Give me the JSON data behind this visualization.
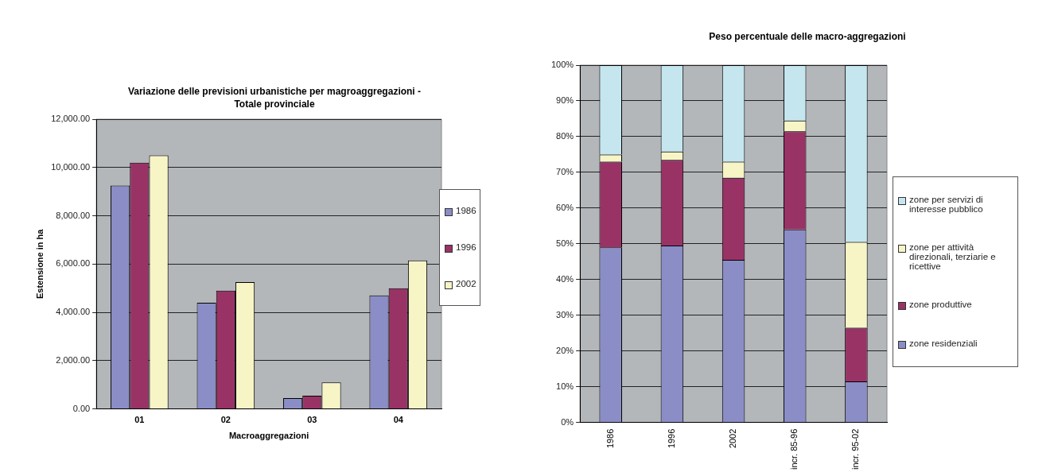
{
  "chart_data": [
    {
      "type": "bar",
      "title": "Variazione delle previsioni urbanistiche per magroaggregazioni - Totale provinciale",
      "xlabel": "Macroaggregazioni",
      "ylabel": "Estensione in ha",
      "categories": [
        "01",
        "02",
        "03",
        "04"
      ],
      "series": [
        {
          "name": "1986",
          "color": "#8b8dc6",
          "values": [
            9250,
            4400,
            450,
            4700
          ]
        },
        {
          "name": "1996",
          "color": "#993366",
          "values": [
            10200,
            4900,
            550,
            5000
          ]
        },
        {
          "name": "2002",
          "color": "#f7f5c6",
          "values": [
            10500,
            5250,
            1100,
            6150
          ]
        }
      ],
      "ylim": [
        0,
        12000
      ],
      "yticks": [
        {
          "value": 0,
          "label": "0.00"
        },
        {
          "value": 2000,
          "label": "2,000.00"
        },
        {
          "value": 4000,
          "label": "4,000.00"
        },
        {
          "value": 6000,
          "label": "6,000.00"
        },
        {
          "value": 8000,
          "label": "8,000.00"
        },
        {
          "value": 10000,
          "label": "10,000.00"
        },
        {
          "value": 12000,
          "label": "12,000.00"
        }
      ],
      "grid": "y",
      "legend": "right"
    },
    {
      "type": "bar",
      "title": "Peso percentuale delle macro-aggregazioni",
      "categories": [
        "1986",
        "1996",
        "2002",
        "incr. 85-96",
        "incr. 95-02"
      ],
      "stacked": true,
      "series": [
        {
          "name": "zone residenziali",
          "color": "#8b8dc6",
          "values": [
            49,
            49.5,
            45.5,
            54,
            11.5
          ]
        },
        {
          "name": "zone produttive",
          "color": "#993366",
          "values": [
            24,
            24,
            23,
            27.5,
            15
          ]
        },
        {
          "name": "zone per attività direzionali, terziarie e ricettive",
          "color": "#f7f5c6",
          "values": [
            2,
            2.3,
            4.5,
            3,
            24
          ]
        },
        {
          "name": "zone per servizi di interesse pubblico",
          "color": "#c5e6ef",
          "values": [
            25,
            24.2,
            27,
            15.5,
            49.5
          ]
        }
      ],
      "ylim": [
        0,
        100
      ],
      "yticks": [
        {
          "value": 0,
          "label": "0%"
        },
        {
          "value": 10,
          "label": "10%"
        },
        {
          "value": 20,
          "label": "20%"
        },
        {
          "value": 30,
          "label": "30%"
        },
        {
          "value": 40,
          "label": "40%"
        },
        {
          "value": 50,
          "label": "50%"
        },
        {
          "value": 60,
          "label": "60%"
        },
        {
          "value": 70,
          "label": "70%"
        },
        {
          "value": 80,
          "label": "80%"
        },
        {
          "value": 90,
          "label": "90%"
        },
        {
          "value": 100,
          "label": "100%"
        }
      ],
      "grid": "y",
      "legend": "right"
    }
  ]
}
